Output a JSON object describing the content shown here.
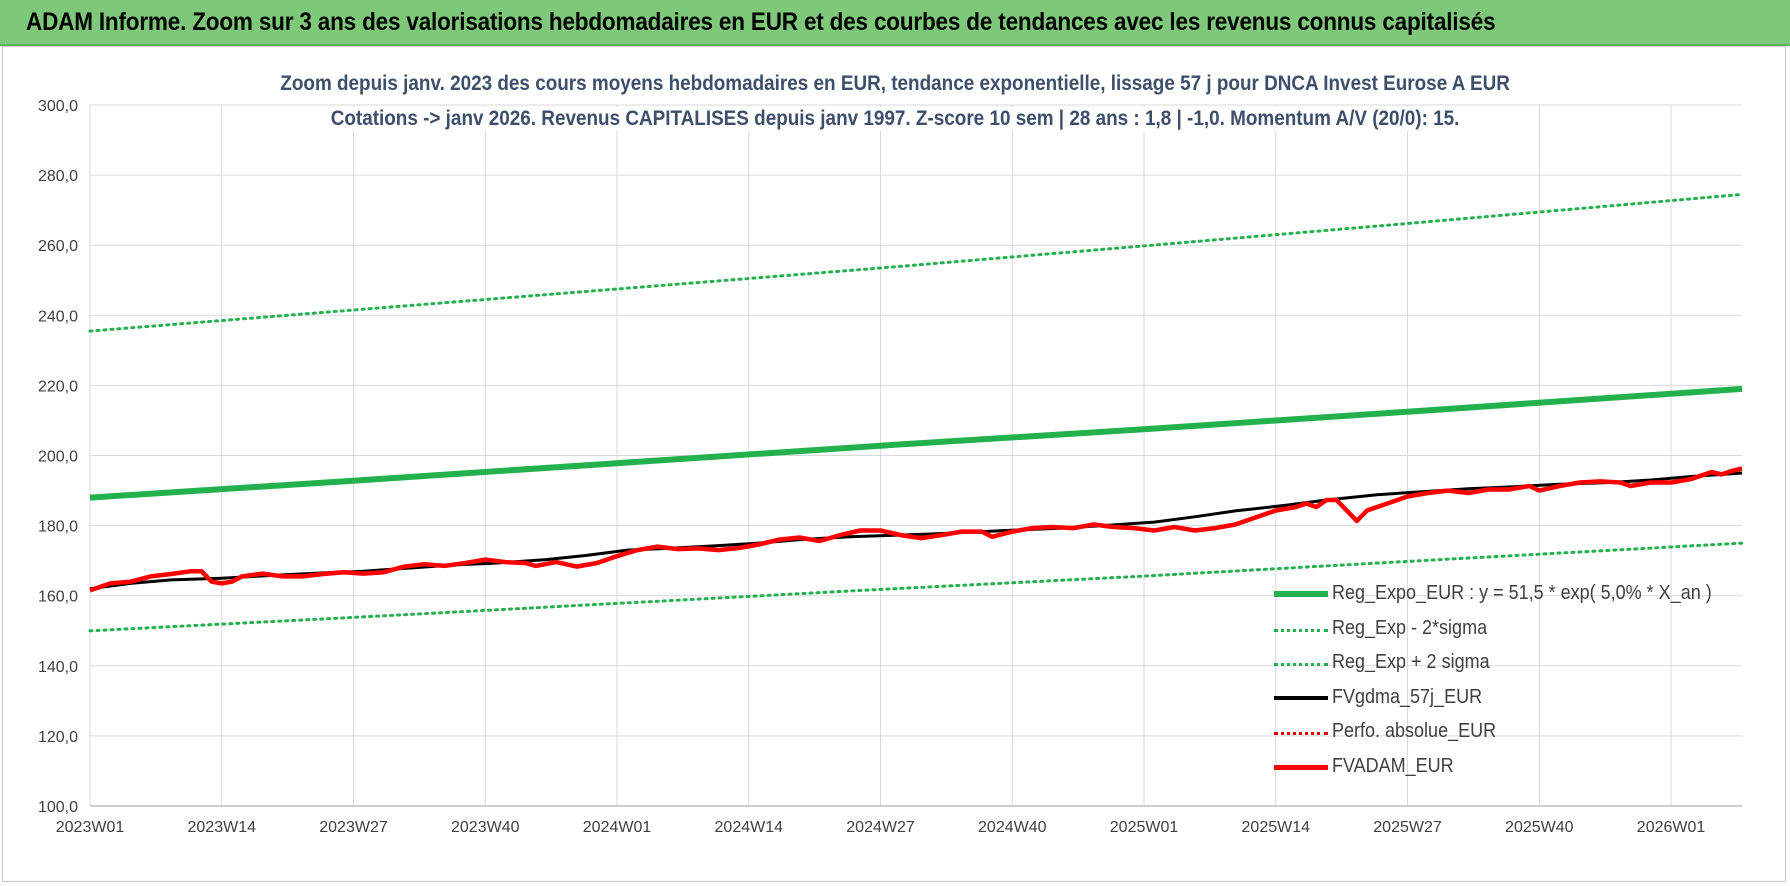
{
  "header": {
    "title": "ADAM Informe. Zoom sur 3 ans des valorisations hebdomadaires en EUR et des courbes de tendances avec les revenus connus capitalisés"
  },
  "colors": {
    "banner": "#7ec87a",
    "trend_green": "#22b14c",
    "ma_black": "#000000",
    "price_red": "#ff0000",
    "grid": "#d9d9d9",
    "title_text": "#3d4f6a"
  },
  "chart_data": {
    "type": "line",
    "title_line1": "Zoom depuis janv. 2023 des cours moyens hebdomadaires en EUR, tendance exponentielle, lissage 57 j pour DNCA Invest Eurose A EUR",
    "title_line2": "Cotations -> janv 2026. Revenus CAPITALISES depuis janv 1997. Z-score 10 sem | 28 ans : 1,8 | -1,0. Momentum A/V (20/0): 15.",
    "xlabel": "",
    "ylabel": "",
    "ylim": [
      100,
      300
    ],
    "yticks": [
      "100,0",
      "120,0",
      "140,0",
      "160,0",
      "180,0",
      "200,0",
      "220,0",
      "240,0",
      "260,0",
      "280,0",
      "300,0"
    ],
    "xticks": [
      "2023W01",
      "2023W14",
      "2023W27",
      "2023W40",
      "2024W01",
      "2024W14",
      "2024W27",
      "2024W40",
      "2025W01",
      "2025W14",
      "2025W27",
      "2025W40",
      "2026W01"
    ],
    "x_range_weeks": [
      0,
      163
    ],
    "grid": true,
    "legend_position": "bottom-right",
    "series": [
      {
        "name": "Reg_Expo_EUR : y = 51,5 * exp( 5,0% *  X_an )",
        "style": "thick-green",
        "points": [
          [
            0,
            188
          ],
          [
            26,
            192.8
          ],
          [
            52,
            197.8
          ],
          [
            78,
            202.8
          ],
          [
            104,
            207.5
          ],
          [
            130,
            212.5
          ],
          [
            163,
            219
          ]
        ]
      },
      {
        "name": "Reg_Exp - 2*sigma",
        "style": "dotted-green",
        "points": [
          [
            0,
            150
          ],
          [
            26,
            153.8
          ],
          [
            52,
            157.8
          ],
          [
            78,
            161.8
          ],
          [
            104,
            165.6
          ],
          [
            130,
            169.8
          ],
          [
            163,
            175
          ]
        ]
      },
      {
        "name": "Reg_Exp + 2 sigma",
        "style": "dotted-green",
        "points": [
          [
            0,
            235.5
          ],
          [
            26,
            241.5
          ],
          [
            52,
            247.5
          ],
          [
            78,
            253.5
          ],
          [
            104,
            259.8
          ],
          [
            130,
            266.2
          ],
          [
            163,
            274.5
          ]
        ]
      },
      {
        "name": "FVgdma_57j_EUR",
        "style": "black",
        "points": [
          [
            0,
            162
          ],
          [
            4,
            163.5
          ],
          [
            8,
            164.5
          ],
          [
            13,
            165
          ],
          [
            18,
            165.8
          ],
          [
            23,
            166.5
          ],
          [
            27,
            167
          ],
          [
            32,
            168
          ],
          [
            36,
            168.8
          ],
          [
            40,
            169.3
          ],
          [
            45,
            170.3
          ],
          [
            49,
            171.5
          ],
          [
            53,
            173
          ],
          [
            57,
            173.5
          ],
          [
            62,
            174.3
          ],
          [
            66,
            175
          ],
          [
            70,
            176
          ],
          [
            75,
            176.8
          ],
          [
            79,
            177.2
          ],
          [
            83,
            177.6
          ],
          [
            88,
            178.3
          ],
          [
            92,
            178.8
          ],
          [
            96,
            179.3
          ],
          [
            101,
            180.2
          ],
          [
            105,
            181
          ],
          [
            109,
            182.5
          ],
          [
            113,
            184.2
          ],
          [
            118,
            185.8
          ],
          [
            122,
            187.3
          ],
          [
            127,
            188.8
          ],
          [
            131,
            189.6
          ],
          [
            136,
            190.5
          ],
          [
            140,
            191
          ],
          [
            145,
            191.8
          ],
          [
            150,
            192.3
          ],
          [
            154,
            193
          ],
          [
            158,
            194
          ],
          [
            163,
            195
          ]
        ]
      },
      {
        "name": "Perfo. absolue_EUR",
        "style": "dotted-red",
        "points": []
      },
      {
        "name": "FVADAM_EUR",
        "style": "red",
        "points": [
          [
            0,
            161.5
          ],
          [
            2,
            163.5
          ],
          [
            4,
            164
          ],
          [
            6,
            165.5
          ],
          [
            8,
            166.2
          ],
          [
            10,
            167
          ],
          [
            11,
            167
          ],
          [
            12,
            164
          ],
          [
            13,
            163.5
          ],
          [
            14,
            164
          ],
          [
            15,
            165.5
          ],
          [
            17,
            166.3
          ],
          [
            19,
            165.5
          ],
          [
            21,
            165.5
          ],
          [
            23,
            166.2
          ],
          [
            25,
            166.7
          ],
          [
            27,
            166.3
          ],
          [
            29,
            166.7
          ],
          [
            31,
            168.3
          ],
          [
            33,
            169
          ],
          [
            35,
            168.5
          ],
          [
            37,
            169.3
          ],
          [
            39,
            170.3
          ],
          [
            41,
            169.6
          ],
          [
            43,
            169.3
          ],
          [
            44,
            168.5
          ],
          [
            46,
            169.6
          ],
          [
            48,
            168.3
          ],
          [
            50,
            169.3
          ],
          [
            52,
            171.3
          ],
          [
            54,
            173
          ],
          [
            56,
            174
          ],
          [
            58,
            173.3
          ],
          [
            60,
            173.5
          ],
          [
            62,
            173
          ],
          [
            64,
            173.6
          ],
          [
            66,
            174.6
          ],
          [
            68,
            176
          ],
          [
            70,
            176.6
          ],
          [
            72,
            175.6
          ],
          [
            74,
            177.3
          ],
          [
            76,
            178.6
          ],
          [
            78,
            178.6
          ],
          [
            80,
            177.3
          ],
          [
            82,
            176.4
          ],
          [
            84,
            177.3
          ],
          [
            86,
            178.3
          ],
          [
            88,
            178.3
          ],
          [
            89,
            176.8
          ],
          [
            91,
            178.3
          ],
          [
            93,
            179.3
          ],
          [
            95,
            179.6
          ],
          [
            97,
            179.3
          ],
          [
            99,
            180.3
          ],
          [
            101,
            179.6
          ],
          [
            103,
            179.3
          ],
          [
            105,
            178.6
          ],
          [
            107,
            179.6
          ],
          [
            109,
            178.6
          ],
          [
            111,
            179.3
          ],
          [
            113,
            180.3
          ],
          [
            115,
            182.3
          ],
          [
            117,
            184.3
          ],
          [
            119,
            185.3
          ],
          [
            120,
            186.3
          ],
          [
            121,
            185.3
          ],
          [
            122,
            187.3
          ],
          [
            123,
            187.3
          ],
          [
            124,
            184.3
          ],
          [
            125,
            181.3
          ],
          [
            126,
            184.3
          ],
          [
            128,
            186.3
          ],
          [
            130,
            188.3
          ],
          [
            132,
            189.3
          ],
          [
            134,
            190
          ],
          [
            136,
            189.3
          ],
          [
            138,
            190.3
          ],
          [
            140,
            190.3
          ],
          [
            142,
            191.3
          ],
          [
            143,
            190
          ],
          [
            145,
            191.3
          ],
          [
            147,
            192.3
          ],
          [
            149,
            192.6
          ],
          [
            151,
            192.3
          ],
          [
            152,
            191.3
          ],
          [
            154,
            192.3
          ],
          [
            156,
            192.3
          ],
          [
            158,
            193.3
          ],
          [
            160,
            195.3
          ],
          [
            161,
            194.6
          ],
          [
            162,
            195.6
          ],
          [
            163,
            196.3
          ]
        ]
      }
    ]
  }
}
